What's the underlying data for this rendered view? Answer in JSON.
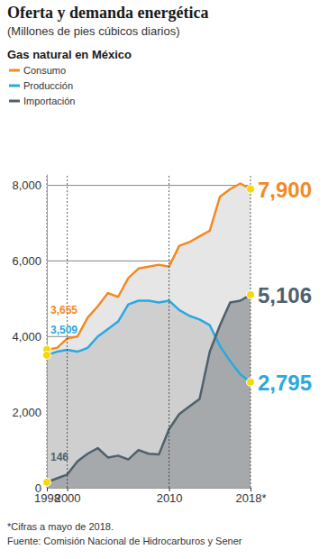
{
  "chart_data": {
    "type": "line",
    "title": "Oferta y demanda energética",
    "subtitle": "(Millones de pies cúbicos diarios)",
    "legend_title": "Gas natural en México",
    "notes": [
      "*Cifras a mayo de 2018.",
      "Fuente: Comisión Nacional de Hidrocarburos y Sener"
    ],
    "x": [
      1998,
      1999,
      2000,
      2001,
      2002,
      2003,
      2004,
      2005,
      2006,
      2007,
      2008,
      2009,
      2010,
      2011,
      2012,
      2013,
      2014,
      2015,
      2016,
      2017,
      2018
    ],
    "xlim": [
      1998,
      2018
    ],
    "xticks": [
      1998,
      2000,
      2010,
      {
        "value": 2018,
        "label": "2018*"
      }
    ],
    "ylim": [
      0,
      8300
    ],
    "yticks": [
      0,
      {
        "value": 2000,
        "label": "2,000"
      },
      {
        "value": 4000,
        "label": "4,000"
      },
      {
        "value": 6000,
        "label": "6,000"
      },
      {
        "value": 8000,
        "label": "8,000"
      }
    ],
    "grid": true,
    "legend": "top-left",
    "series": [
      {
        "name": "Consumo",
        "color": "#f28a24",
        "values": [
          3655,
          3700,
          3950,
          4000,
          4500,
          4800,
          5150,
          5050,
          5550,
          5800,
          5850,
          5900,
          5850,
          6400,
          6500,
          6650,
          6800,
          7700,
          7900,
          8050,
          7900
        ],
        "value_labels": [
          "3,655",
          null,
          null,
          null,
          null,
          null,
          null,
          null,
          null,
          null,
          null,
          null,
          null,
          null,
          null,
          null,
          null,
          null,
          null,
          null,
          "7,900"
        ]
      },
      {
        "name": "Producción",
        "color": "#29a9e1",
        "values": [
          3509,
          3600,
          3650,
          3600,
          3700,
          4000,
          4200,
          4400,
          4850,
          4950,
          4950,
          4900,
          4950,
          4700,
          4550,
          4450,
          4300,
          3750,
          3350,
          3000,
          2795
        ],
        "value_labels": [
          "3,509",
          null,
          null,
          null,
          null,
          null,
          null,
          null,
          null,
          null,
          null,
          null,
          null,
          null,
          null,
          null,
          null,
          null,
          null,
          null,
          "2,795"
        ]
      },
      {
        "name": "Importación",
        "color": "#4e616c",
        "values": [
          146,
          250,
          350,
          700,
          900,
          1050,
          800,
          850,
          750,
          1000,
          900,
          880,
          1550,
          1950,
          2150,
          2350,
          3600,
          4300,
          4900,
          4950,
          5106
        ],
        "value_labels": [
          "146",
          null,
          null,
          null,
          null,
          null,
          null,
          null,
          null,
          null,
          null,
          null,
          null,
          null,
          null,
          null,
          null,
          null,
          null,
          null,
          "5,106"
        ]
      }
    ]
  }
}
